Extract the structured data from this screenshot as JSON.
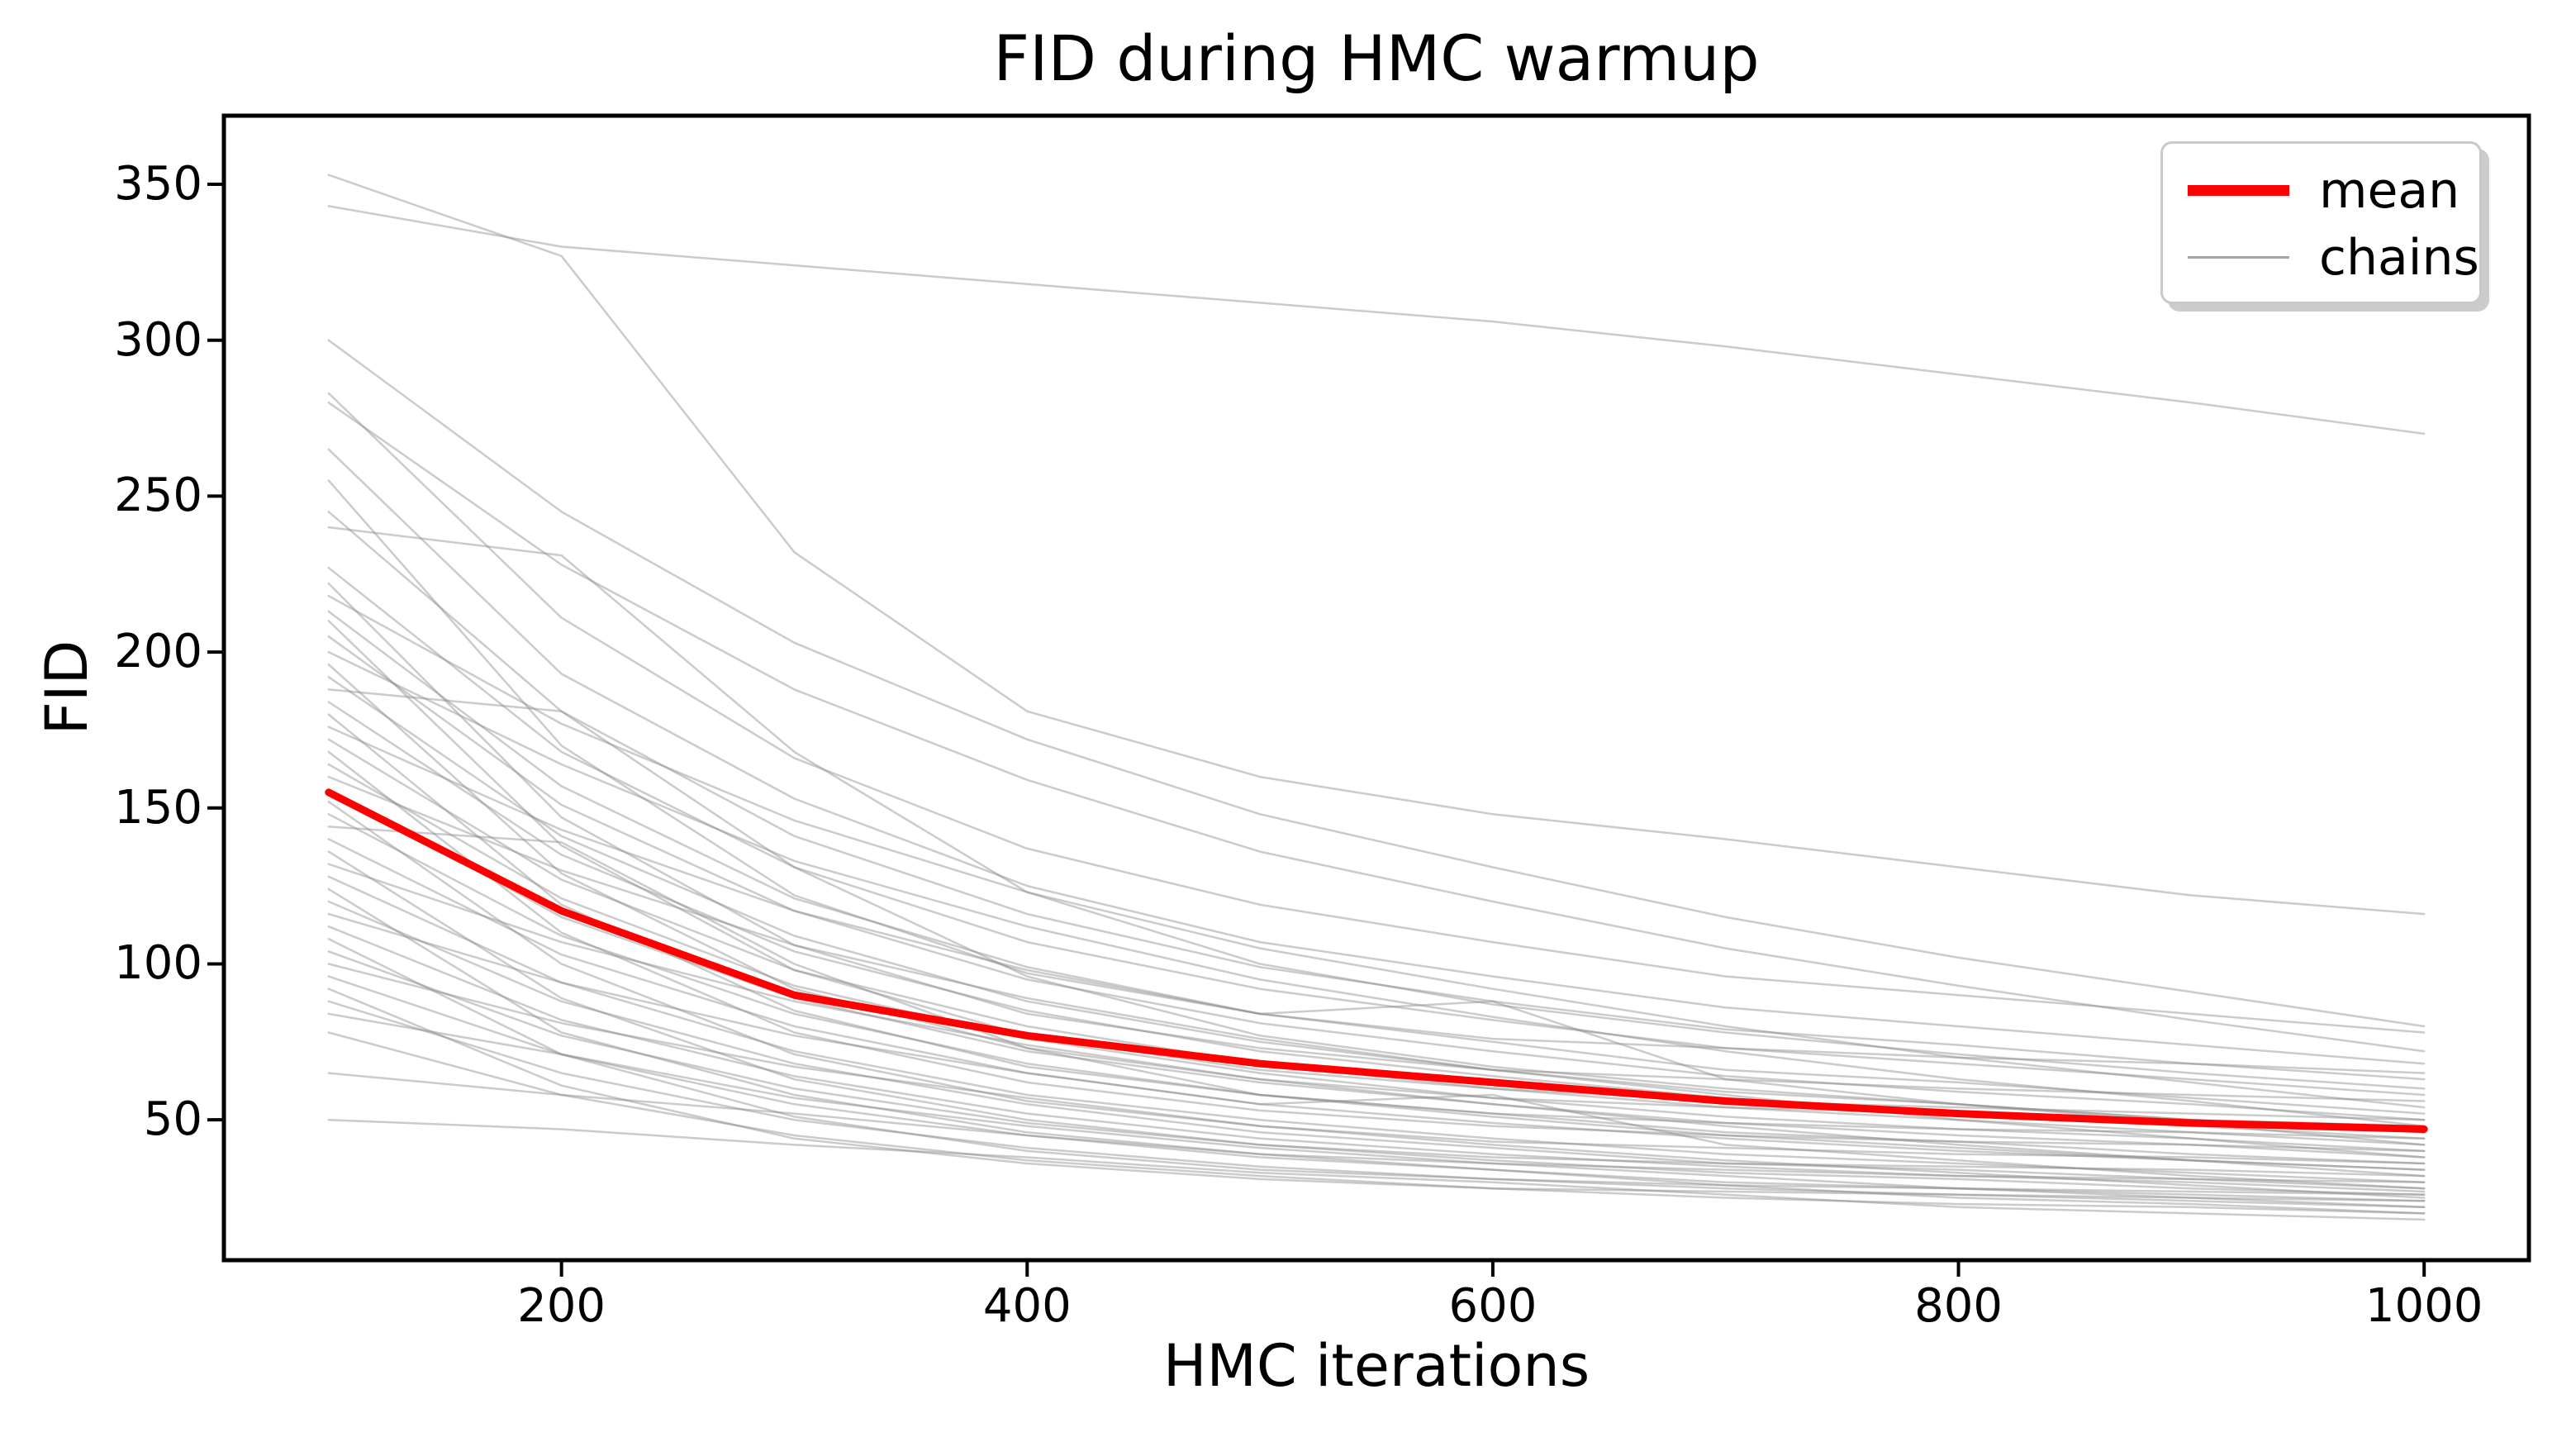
{
  "figure": {
    "title": "FID during HMC warmup"
  },
  "axes": {
    "xlabel": "HMC iterations",
    "ylabel": "FID"
  },
  "legend": {
    "position": "upper right",
    "items": [
      {
        "label": "mean",
        "swatch": "thick-red-line"
      },
      {
        "label": "chains",
        "swatch": "thin-gray-line"
      }
    ]
  },
  "colors": {
    "mean_line": "#ff0000",
    "chain_line": "#8c8c8c",
    "spine": "#000000",
    "background": "#ffffff",
    "legend_border": "#c9c9c9"
  },
  "chart_data": {
    "type": "line",
    "title": "FID during HMC warmup",
    "xlabel": "HMC iterations",
    "ylabel": "FID",
    "x": [
      100,
      200,
      300,
      400,
      500,
      600,
      700,
      800,
      900,
      1000
    ],
    "x_ticks": [
      200,
      400,
      600,
      800,
      1000
    ],
    "y_ticks": [
      50,
      100,
      150,
      200,
      250,
      300,
      350
    ],
    "xlim": [
      55,
      1045
    ],
    "ylim": [
      5,
      372
    ],
    "grid": false,
    "legend_position": "upper right",
    "series": [
      {
        "name": "mean",
        "color": "#ff0000",
        "linewidth": 9,
        "values": [
          155,
          117,
          90,
          77,
          68,
          62,
          56,
          52,
          49,
          47
        ]
      },
      {
        "name": "chains",
        "color": "#8c8c8c",
        "linewidth": 2.5,
        "opacity": 0.45,
        "chains": [
          [
            353,
            327,
            232,
            181,
            160,
            148,
            140,
            131,
            122,
            116
          ],
          [
            343,
            330,
            324,
            318,
            312,
            306,
            298,
            289,
            280,
            270
          ],
          [
            300,
            245,
            203,
            172,
            148,
            131,
            115,
            102,
            91,
            80
          ],
          [
            283,
            211,
            166,
            137,
            119,
            107,
            96,
            90,
            84,
            78
          ],
          [
            280,
            228,
            188,
            159,
            136,
            120,
            105,
            93,
            82,
            72
          ],
          [
            265,
            193,
            153,
            125,
            107,
            96,
            86,
            80,
            74,
            68
          ],
          [
            255,
            170,
            122,
            97,
            84,
            76,
            73,
            70,
            68,
            65
          ],
          [
            245,
            181,
            141,
            116,
            99,
            88,
            79,
            74,
            68,
            63
          ],
          [
            240,
            231,
            168,
            123,
            100,
            87,
            78,
            71,
            65,
            60
          ],
          [
            227,
            168,
            131,
            107,
            92,
            82,
            73,
            68,
            63,
            58
          ],
          [
            222,
            147,
            106,
            84,
            73,
            66,
            63,
            60,
            58,
            56
          ],
          [
            218,
            177,
            146,
            123,
            105,
            92,
            80,
            70,
            62,
            54
          ],
          [
            213,
            157,
            121,
            99,
            84,
            75,
            66,
            62,
            57,
            52
          ],
          [
            210,
            138,
            98,
            77,
            66,
            60,
            56,
            54,
            52,
            50
          ],
          [
            205,
            151,
            117,
            95,
            81,
            72,
            64,
            59,
            55,
            50
          ],
          [
            200,
            164,
            133,
            112,
            95,
            83,
            72,
            63,
            56,
            48
          ],
          [
            196,
            129,
            92,
            73,
            63,
            57,
            54,
            52,
            50,
            48
          ],
          [
            192,
            141,
            109,
            88,
            75,
            66,
            59,
            55,
            50,
            46
          ],
          [
            188,
            181,
            131,
            96,
            77,
            67,
            60,
            55,
            50,
            46
          ],
          [
            184,
            135,
            104,
            85,
            72,
            64,
            57,
            52,
            48,
            44
          ],
          [
            180,
            119,
            85,
            67,
            58,
            52,
            49,
            47,
            46,
            44
          ],
          [
            176,
            143,
            117,
            98,
            84,
            88,
            63,
            55,
            49,
            42
          ],
          [
            172,
            127,
            98,
            80,
            68,
            60,
            54,
            50,
            46,
            42
          ],
          [
            168,
            110,
            78,
            62,
            53,
            48,
            45,
            43,
            42,
            40
          ],
          [
            164,
            121,
            93,
            76,
            65,
            57,
            51,
            47,
            44,
            40
          ],
          [
            160,
            130,
            106,
            89,
            76,
            66,
            58,
            50,
            44,
            38
          ],
          [
            156,
            115,
            89,
            72,
            62,
            55,
            49,
            45,
            42,
            38
          ],
          [
            152,
            100,
            71,
            56,
            48,
            43,
            41,
            39,
            38,
            36
          ],
          [
            148,
            109,
            84,
            68,
            58,
            52,
            46,
            43,
            39,
            36
          ],
          [
            144,
            139,
            100,
            73,
            58,
            51,
            45,
            41,
            37,
            34
          ],
          [
            140,
            103,
            80,
            65,
            55,
            49,
            44,
            40,
            37,
            34
          ],
          [
            136,
            89,
            63,
            50,
            42,
            38,
            36,
            35,
            34,
            32
          ],
          [
            132,
            107,
            88,
            74,
            63,
            55,
            48,
            42,
            37,
            32
          ],
          [
            128,
            94,
            72,
            58,
            50,
            44,
            39,
            36,
            33,
            30
          ],
          [
            124,
            78,
            58,
            46,
            39,
            36,
            34,
            32,
            31,
            30
          ],
          [
            120,
            88,
            68,
            55,
            46,
            41,
            36,
            34,
            31,
            28
          ],
          [
            116,
            94,
            77,
            65,
            55,
            58,
            42,
            37,
            32,
            28
          ],
          [
            112,
            82,
            64,
            52,
            44,
            39,
            35,
            32,
            30,
            27
          ],
          [
            108,
            71,
            51,
            40,
            34,
            31,
            29,
            28,
            27,
            26
          ],
          [
            104,
            77,
            60,
            49,
            42,
            37,
            33,
            31,
            28,
            26
          ],
          [
            100,
            81,
            67,
            57,
            48,
            42,
            37,
            33,
            29,
            25
          ],
          [
            96,
            71,
            55,
            45,
            38,
            34,
            30,
            28,
            26,
            24
          ],
          [
            92,
            61,
            44,
            36,
            31,
            28,
            27,
            26,
            25,
            24
          ],
          [
            88,
            65,
            50,
            41,
            35,
            31,
            28,
            26,
            24,
            22
          ],
          [
            84,
            71,
            57,
            48,
            41,
            36,
            32,
            28,
            25,
            22
          ],
          [
            78,
            58,
            45,
            37,
            32,
            28,
            25,
            23,
            22,
            20
          ],
          [
            65,
            58,
            52,
            45,
            39,
            34,
            29,
            25,
            23,
            20
          ],
          [
            50,
            47,
            42,
            38,
            33,
            30,
            26,
            22,
            20,
            18
          ]
        ]
      }
    ]
  }
}
